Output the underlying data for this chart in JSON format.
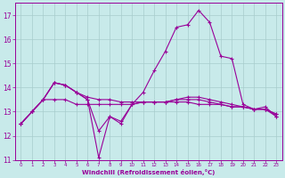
{
  "xlabel": "Windchill (Refroidissement éolien,°C)",
  "xlim": [
    -0.5,
    23.5
  ],
  "ylim": [
    11,
    17.5
  ],
  "yticks": [
    11,
    12,
    13,
    14,
    15,
    16,
    17
  ],
  "xticks": [
    0,
    1,
    2,
    3,
    4,
    5,
    6,
    7,
    8,
    9,
    10,
    11,
    12,
    13,
    14,
    15,
    16,
    17,
    18,
    19,
    20,
    21,
    22,
    23
  ],
  "background_color": "#c8eaea",
  "grid_color": "#a8cccc",
  "line_color": "#990099",
  "line_width": 0.8,
  "marker_size": 3.5,
  "series": [
    {
      "x": [
        0,
        1,
        2,
        3,
        4,
        5,
        6,
        7,
        8,
        9,
        10,
        11,
        12,
        13,
        14,
        15,
        16,
        17,
        18,
        19,
        20,
        21,
        22,
        23
      ],
      "y": [
        12.5,
        13.0,
        13.5,
        13.5,
        13.5,
        13.3,
        13.3,
        13.3,
        13.3,
        13.3,
        13.3,
        13.4,
        13.4,
        13.4,
        13.5,
        13.6,
        13.6,
        13.5,
        13.4,
        13.3,
        13.2,
        13.1,
        13.1,
        12.9
      ]
    },
    {
      "x": [
        0,
        1,
        2,
        3,
        4,
        5,
        6,
        7,
        8,
        9,
        10,
        11,
        12,
        13,
        14,
        15,
        16,
        17,
        18,
        19,
        20,
        21,
        22,
        23
      ],
      "y": [
        12.5,
        13.0,
        13.5,
        14.2,
        14.1,
        13.8,
        13.6,
        13.5,
        13.5,
        13.4,
        13.4,
        13.4,
        13.4,
        13.4,
        13.5,
        13.5,
        13.5,
        13.4,
        13.3,
        13.2,
        13.2,
        13.1,
        13.1,
        12.9
      ]
    },
    {
      "x": [
        0,
        1,
        2,
        3,
        4,
        5,
        6,
        7,
        8,
        9,
        10,
        11,
        12,
        13,
        14,
        15,
        16,
        17,
        18,
        19,
        20,
        21,
        22,
        23
      ],
      "y": [
        12.5,
        13.0,
        13.5,
        14.2,
        14.1,
        13.8,
        13.5,
        11.1,
        12.8,
        12.5,
        13.3,
        13.4,
        13.4,
        13.4,
        13.4,
        13.4,
        13.3,
        13.3,
        13.3,
        13.2,
        13.2,
        13.1,
        13.1,
        12.8
      ]
    },
    {
      "x": [
        0,
        1,
        2,
        3,
        4,
        5,
        6,
        7,
        8,
        9,
        10,
        11,
        12,
        13,
        14,
        15,
        16,
        17,
        18,
        19,
        20,
        21,
        22,
        23
      ],
      "y": [
        12.5,
        13.0,
        13.5,
        14.2,
        14.1,
        13.8,
        13.5,
        12.2,
        12.8,
        12.6,
        13.3,
        13.8,
        14.7,
        15.5,
        16.5,
        16.6,
        17.2,
        16.7,
        15.3,
        15.2,
        13.3,
        13.1,
        13.2,
        12.8
      ]
    }
  ]
}
